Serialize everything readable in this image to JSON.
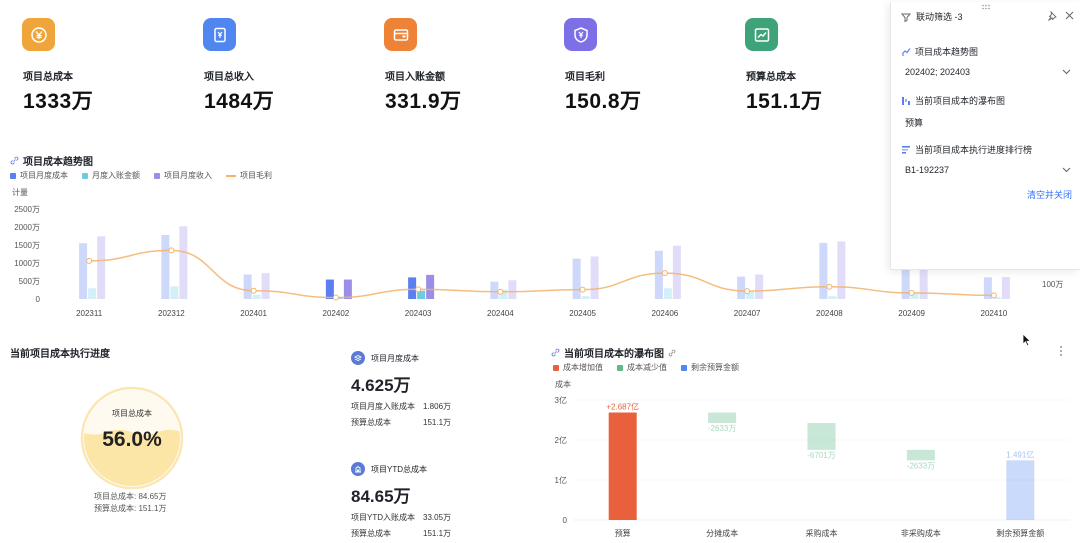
{
  "kpis": [
    {
      "title": "项目总成本",
      "value": "1333万",
      "color": "#f0a53b",
      "icon": "yuan-coin-icon"
    },
    {
      "title": "项目总收入",
      "value": "1484万",
      "color": "#4f86f0",
      "icon": "yuan-card-icon"
    },
    {
      "title": "项目入账金额",
      "value": "331.9万",
      "color": "#ee8236",
      "icon": "wallet-icon"
    },
    {
      "title": "项目毛利",
      "value": "150.8万",
      "color": "#7d70e6",
      "icon": "yuan-shield-icon"
    },
    {
      "title": "预算总成本",
      "value": "151.1万",
      "color": "#3fa37a",
      "icon": "trend-chart-icon"
    }
  ],
  "trend": {
    "title": "项目成本趋势图",
    "legend": [
      "项目月度成本",
      "月度入账金额",
      "项目月度收入",
      "项目毛利"
    ],
    "y_unit": "计量",
    "y_ticks": [
      "2500万",
      "2000万",
      "1500万",
      "1000万",
      "500万",
      "0"
    ],
    "y2_tick": "100万",
    "colors": {
      "cost": "#5b7ff0",
      "entry": "#6dcde0",
      "income": "#9a8ee8",
      "profit": "#f4b26b"
    }
  },
  "filter_panel": {
    "title": "联动筛选 -3",
    "filters": [
      {
        "label": "项目成本趋势图",
        "value": "202402; 202403"
      },
      {
        "label": "当前项目成本的瀑布图",
        "value": "预算"
      },
      {
        "label": "当前项目成本执行进度排行榜",
        "value": "B1-192237"
      }
    ],
    "clear_label": "清空并关闭"
  },
  "progress": {
    "title": "当前项目成本执行进度",
    "gauge_label": "项目总成本",
    "gauge_value": "56.0%",
    "gauge_fraction": 0.56,
    "foot1": "项目总成本: 84.65万",
    "foot2": "预算总成本: 151.1万"
  },
  "stat_monthly": {
    "title": "项目月度成本",
    "value": "4.625万",
    "rows": [
      [
        "项目月度入账成本",
        "1.806万"
      ],
      [
        "预算总成本",
        "151.1万"
      ]
    ]
  },
  "stat_ytd": {
    "title": "项目YTD总成本",
    "value": "84.65万",
    "rows": [
      [
        "项目YTD入账成本",
        "33.05万"
      ],
      [
        "预算总成本",
        "151.1万"
      ]
    ]
  },
  "waterfall": {
    "title": "当前项目成本的瀑布图",
    "legend": [
      "成本增加值",
      "成本减少值",
      "剩余预算金额"
    ],
    "colors": {
      "increase": "#e8613c",
      "decrease": "#62b98a",
      "remaining": "#4f86f0"
    },
    "y_unit": "成本",
    "y_ticks": [
      "3亿",
      "2亿",
      "1亿",
      "0"
    ]
  },
  "chart_data": [
    {
      "type": "bar",
      "title": "项目成本趋势图",
      "ylabel": "计量",
      "ylim": [
        0,
        2500
      ],
      "unit": "万",
      "categories": [
        "202311",
        "202312",
        "202401",
        "202402",
        "202403",
        "202404",
        "202405",
        "202406",
        "202407",
        "202408",
        "202409",
        "202410"
      ],
      "highlighted": [
        "202402",
        "202403"
      ],
      "series": [
        {
          "name": "项目月度成本",
          "type": "bar",
          "values": [
            1550,
            1780,
            680,
            540,
            600,
            480,
            1120,
            1340,
            620,
            1560,
            1600,
            600
          ]
        },
        {
          "name": "月度入账金额",
          "type": "bar",
          "values": [
            300,
            350,
            120,
            20,
            230,
            260,
            80,
            300,
            200,
            80,
            150,
            60
          ]
        },
        {
          "name": "项目月度收入",
          "type": "bar",
          "values": [
            1740,
            2020,
            720,
            540,
            670,
            520,
            1180,
            1480,
            680,
            1600,
            1650,
            610
          ]
        },
        {
          "name": "项目毛利",
          "type": "line",
          "values": [
            1060,
            1350,
            230,
            40,
            270,
            200,
            260,
            720,
            220,
            340,
            170,
            100
          ]
        }
      ],
      "grid": false,
      "legend": "top-left"
    },
    {
      "type": "bar",
      "title": "当前项目成本的瀑布图",
      "ylabel": "成本",
      "ylim": [
        0,
        3
      ],
      "unit": "亿",
      "categories": [
        "预算",
        "分摊成本",
        "采购成本",
        "非采购成本",
        "剩余预算金额"
      ],
      "bars": [
        {
          "kind": "increase",
          "start": 0,
          "end": 2.687,
          "label": "+2.687亿"
        },
        {
          "kind": "decrease",
          "start": 2.687,
          "end": 2.424,
          "label": "-2633万"
        },
        {
          "kind": "decrease",
          "start": 2.424,
          "end": 1.754,
          "label": "-6701万"
        },
        {
          "kind": "decrease",
          "start": 1.754,
          "end": 1.491,
          "label": "-2633万"
        },
        {
          "kind": "remaining",
          "start": 0,
          "end": 1.491,
          "label": "1.491亿"
        }
      ],
      "legend": "top-left"
    }
  ]
}
